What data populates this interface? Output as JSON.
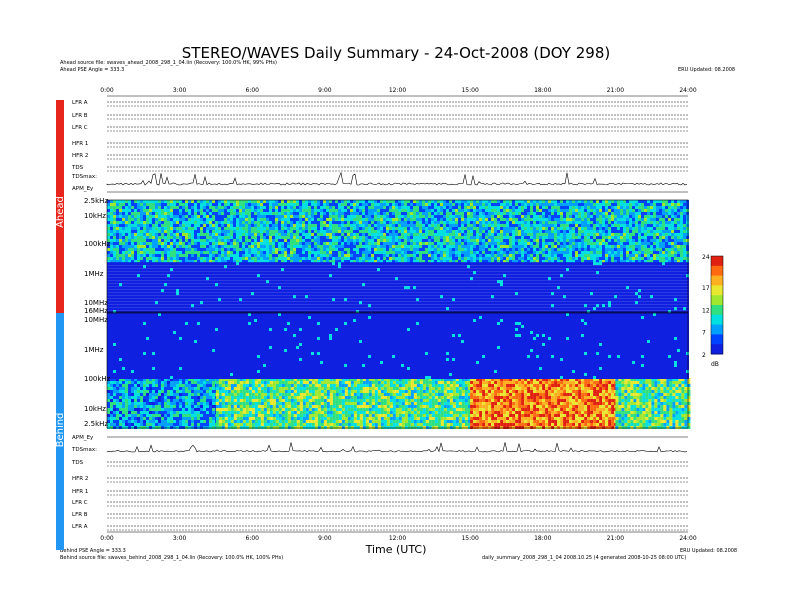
{
  "title": "STEREO/WAVES Daily Summary - 24-Oct-2008 (DOY 298)",
  "header_left": {
    "ahead_source": "Ahead source file: swaves_ahead_2008_298_1_04.lin (Recovery: 100.0% HK, 99% PHs)",
    "ahead_angle": "Ahead PSE Angle = 333.3"
  },
  "header_right": "ERU Updated: 08.2008",
  "footer_left": {
    "behind_angle": "Behind PSE Angle = 333.3",
    "behind_source": "Behind source file: swaves_behind_2008_298_1_04.lin (Recovery: 100.0% HK, 100% PHs)"
  },
  "footer_right": {
    "line1": "ERU Updated: 08.2008",
    "line2": "daily_summary_2008_298_1_04 2008.10.25 (4 generated 2008-10-25 08:00 UTC)"
  },
  "time_axis": {
    "label": "Time (UTC)",
    "ticks": [
      "0:00",
      "3:00",
      "6:00",
      "9:00",
      "12:00",
      "15:00",
      "18:00",
      "21:00",
      "24:00"
    ]
  },
  "ahead_label": "Ahead",
  "behind_label": "Behind",
  "ahead_rows": [
    "LFR A",
    "LFR B",
    "LFR C",
    "HFR 1",
    "HFR 2",
    "TDS",
    "TDSmax:",
    "APM_Ey"
  ],
  "behind_rows": [
    "APM_Ey",
    "TDSmax:",
    "TDS",
    "HFR 2",
    "HFR 1",
    "LFR C",
    "LFR B",
    "LFR A"
  ],
  "freq_labels_ahead": [
    "2.5kHz",
    "10kHz",
    "100kHz",
    "1MHz",
    "10MHz"
  ],
  "freq_labels_behind": [
    "16MHz",
    "10MHz",
    "1MHz",
    "100kHz",
    "10kHz",
    "2.5kHz"
  ],
  "colorbar": {
    "unit": "dB",
    "ticks": [
      "24",
      "17",
      "12",
      "7",
      "2"
    ]
  },
  "colors": {
    "ahead_strip": "#e8251c",
    "behind_strip": "#2196f3",
    "background_band": "#1a1ae0"
  },
  "chart_data": {
    "type": "heatmap",
    "title": "STEREO/WAVES Daily Summary - 24-Oct-2008 (DOY 298)",
    "xlabel": "Time (UTC)",
    "x_range_hours": [
      0,
      24
    ],
    "colorbar_range_dB": [
      2,
      24
    ],
    "panels": [
      {
        "name": "Ahead",
        "freq_range": [
          "2.5kHz",
          "16MHz"
        ],
        "summary": [
          {
            "band": "2.5kHz-100kHz",
            "hours": [
              0,
              24
            ],
            "level_dB": 9
          },
          {
            "band": "100kHz-16MHz",
            "hours": [
              0,
              24
            ],
            "level_dB": 3
          }
        ]
      },
      {
        "name": "Behind",
        "freq_range": [
          "2.5kHz",
          "16MHz"
        ],
        "summary": [
          {
            "band": "2.5kHz-100kHz",
            "hours": [
              0,
              4.5
            ],
            "level_dB": 8
          },
          {
            "band": "2.5kHz-100kHz",
            "hours": [
              4.5,
              15
            ],
            "level_dB": 12
          },
          {
            "band": "2.5kHz-100kHz",
            "hours": [
              15,
              21
            ],
            "level_dB": 20
          },
          {
            "band": "2.5kHz-100kHz",
            "hours": [
              21,
              24
            ],
            "level_dB": 12
          },
          {
            "band": "100kHz-16MHz",
            "hours": [
              0,
              24
            ],
            "level_dB": 3
          }
        ]
      }
    ]
  }
}
